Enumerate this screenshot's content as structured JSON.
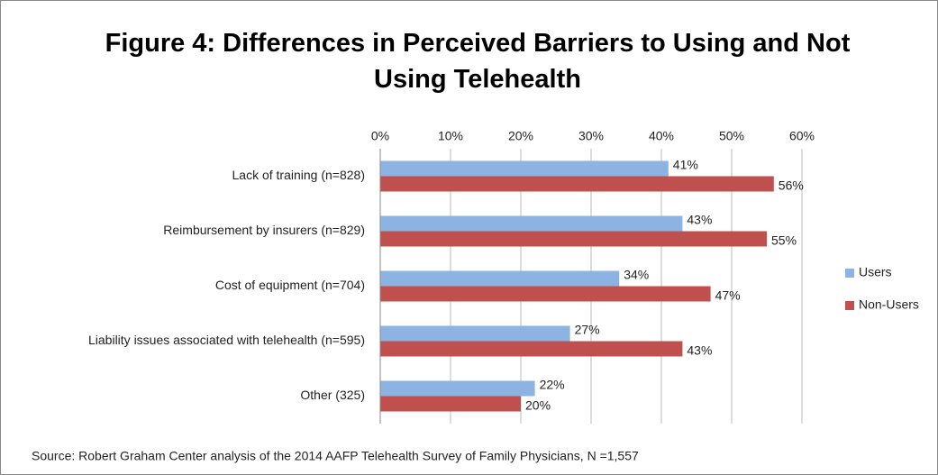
{
  "chart_data": {
    "type": "bar",
    "orientation": "horizontal",
    "title": "Figure 4: Differences in Perceived Barriers to Using and Not Using Telehealth",
    "categories": [
      "Lack of training  (n=828)",
      "Reimbursement by insurers (n=829)",
      "Cost of equipment (n=704)",
      "Liability issues associated with telehealth (n=595)",
      "Other (325)"
    ],
    "series": [
      {
        "name": "Users",
        "color": "#8db3e2",
        "values": [
          41,
          43,
          34,
          27,
          22
        ],
        "value_labels": [
          "41%",
          "43%",
          "34%",
          "27%",
          "22%"
        ]
      },
      {
        "name": "Non-Users",
        "color": "#c0504d",
        "values": [
          56,
          55,
          47,
          43,
          20
        ],
        "value_labels": [
          "56%",
          "55%",
          "47%",
          "43%",
          "20%"
        ]
      }
    ],
    "xlim": [
      0,
      60
    ],
    "xticks": [
      {
        "value": 0,
        "label": "0%"
      },
      {
        "value": 10,
        "label": "10%"
      },
      {
        "value": 20,
        "label": "20%"
      },
      {
        "value": 30,
        "label": "30%"
      },
      {
        "value": 40,
        "label": "40%"
      },
      {
        "value": 50,
        "label": "50%"
      },
      {
        "value": 60,
        "label": "60%"
      }
    ],
    "grid": true,
    "legend": "right",
    "source": "Source: Robert Graham Center analysis of the 2014 AAFP Telehealth Survey of Family Physicians, N =1,557"
  }
}
